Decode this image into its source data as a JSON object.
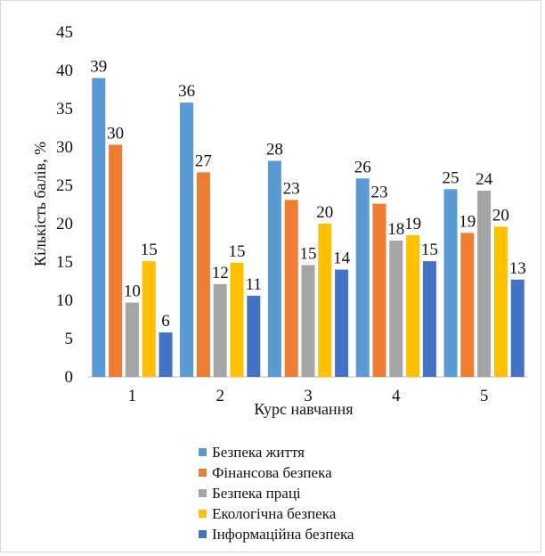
{
  "chart_data": {
    "type": "bar",
    "categories": [
      "1",
      "2",
      "3",
      "4",
      "5"
    ],
    "series": [
      {
        "name": "Безпека життя",
        "color": "#5b9bd5",
        "values": [
          39,
          36,
          28,
          26,
          25
        ]
      },
      {
        "name": "Фінансова безпека",
        "color": "#ed7d31",
        "values": [
          30,
          27,
          23,
          23,
          19
        ]
      },
      {
        "name": "Безпека праці",
        "color": "#a5a5a5",
        "values": [
          10,
          12,
          15,
          18,
          24
        ]
      },
      {
        "name": "Екологічна безпека",
        "color": "#ffc000",
        "values": [
          15,
          15,
          20,
          19,
          20
        ]
      },
      {
        "name": "Інформаційна безпека",
        "color": "#4472c4",
        "values": [
          6,
          11,
          14,
          15,
          13
        ]
      }
    ],
    "bar_heights": [
      [
        39.0,
        35.8,
        28.2,
        25.9,
        24.5
      ],
      [
        30.3,
        26.7,
        23.1,
        22.6,
        18.8
      ],
      [
        9.7,
        12.1,
        14.6,
        17.8,
        24.3
      ],
      [
        15.1,
        14.9,
        20.0,
        18.5,
        19.6
      ],
      [
        5.8,
        10.6,
        14.0,
        15.1,
        12.7
      ]
    ],
    "xlabel": "Курс навчання",
    "ylabel": "Кількість балів, %",
    "ylim": [
      0,
      45
    ],
    "yticks": [
      0,
      5,
      10,
      15,
      20,
      25,
      30,
      35,
      40,
      45
    ],
    "grid": false,
    "legend_position": "bottom"
  }
}
